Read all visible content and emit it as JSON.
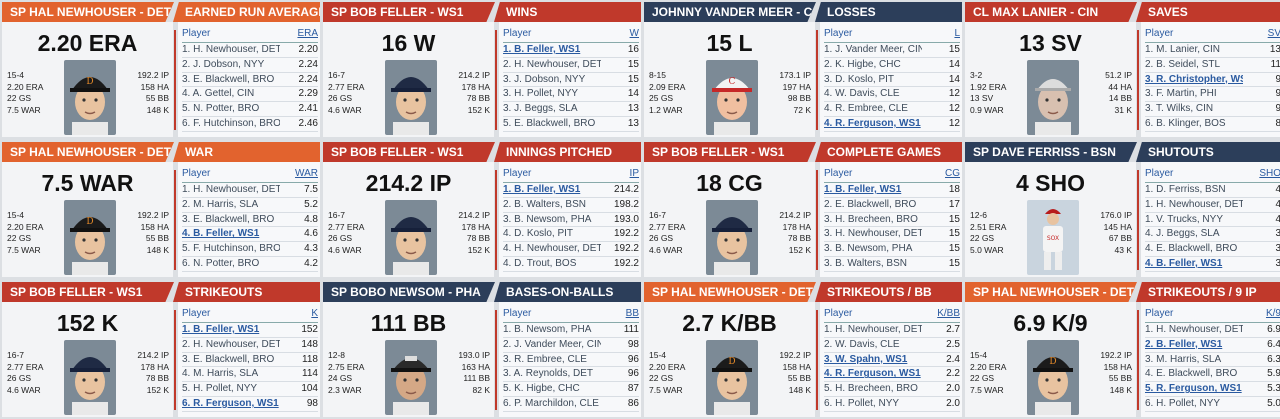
{
  "colors": {
    "orange": "#e2632e",
    "red": "#c0392b",
    "navy": "#2c3e5a"
  },
  "cards": [
    {
      "header_left": "SP HAL NEWHOUSER - DET",
      "header_right": "EARNED RUN AVERAGE",
      "left_color": "orange",
      "right_color": "orange",
      "big": "2.20 ERA",
      "photo": "tigers-cap",
      "left_stats": [
        "15-4",
        "2.20 ERA",
        "22 GS",
        "7.5 WAR"
      ],
      "right_stats": [
        "192.2 IP",
        "158 HA",
        "55 BB",
        "148 K"
      ],
      "col_player": "Player",
      "col_stat": "ERA",
      "rows": [
        {
          "player": "1. H. Newhouser, DET",
          "value": "2.20",
          "hl": false
        },
        {
          "player": "2. J. Dobson, NYY",
          "value": "2.24",
          "hl": false
        },
        {
          "player": "3. E. Blackwell, BRO",
          "value": "2.24",
          "hl": false
        },
        {
          "player": "4. A. Gettel, CIN",
          "value": "2.29",
          "hl": false
        },
        {
          "player": "5. N. Potter, BRO",
          "value": "2.41",
          "hl": false
        },
        {
          "player": "6. F. Hutchinson, BRO",
          "value": "2.46",
          "hl": false
        }
      ]
    },
    {
      "header_left": "SP BOB FELLER - WS1",
      "header_right": "WINS",
      "left_color": "red",
      "right_color": "red",
      "big": "16 W",
      "photo": "young-player",
      "left_stats": [
        "16-7",
        "2.77 ERA",
        "26 GS",
        "4.6 WAR"
      ],
      "right_stats": [
        "214.2 IP",
        "178 HA",
        "78 BB",
        "152 K"
      ],
      "col_player": "Player",
      "col_stat": "W",
      "rows": [
        {
          "player": "1. B. Feller, WS1",
          "value": "16",
          "hl": true
        },
        {
          "player": "2. H. Newhouser, DET",
          "value": "15",
          "hl": false
        },
        {
          "player": "3. J. Dobson, NYY",
          "value": "15",
          "hl": false
        },
        {
          "player": "3. H. Pollet, NYY",
          "value": "14",
          "hl": false
        },
        {
          "player": "3. J. Beggs, SLA",
          "value": "13",
          "hl": false
        },
        {
          "player": "5. E. Blackwell, BRO",
          "value": "13",
          "hl": false
        }
      ]
    },
    {
      "header_left": "JOHNNY VANDER MEER - C",
      "header_right": "LOSSES",
      "left_color": "navy",
      "right_color": "navy",
      "big": "15 L",
      "photo": "reds-cap",
      "left_stats": [
        "8-15",
        "2.09 ERA",
        "25 GS",
        "1.2 WAR"
      ],
      "right_stats": [
        "173.1 IP",
        "197 HA",
        "98 BB",
        "72 K"
      ],
      "col_player": "Player",
      "col_stat": "L",
      "rows": [
        {
          "player": "1. J. Vander Meer, CIN",
          "value": "15",
          "hl": false
        },
        {
          "player": "2. K. Higbe, CHC",
          "value": "14",
          "hl": false
        },
        {
          "player": "3. D. Koslo, PIT",
          "value": "14",
          "hl": false
        },
        {
          "player": "4. W. Davis, CLE",
          "value": "12",
          "hl": false
        },
        {
          "player": "4. R. Embree, CLE",
          "value": "12",
          "hl": false
        },
        {
          "player": "4. R. Ferguson, WS1",
          "value": "12",
          "hl": true
        }
      ]
    },
    {
      "header_left": "CL MAX LANIER - CIN",
      "header_right": "SAVES",
      "left_color": "red",
      "right_color": "red",
      "big": "13 SV",
      "photo": "older-player",
      "left_stats": [
        "3-2",
        "1.92 ERA",
        "13 SV",
        "0.9 WAR"
      ],
      "right_stats": [
        "51.2 IP",
        "44 HA",
        "14 BB",
        "31 K"
      ],
      "col_player": "Player",
      "col_stat": "SV",
      "rows": [
        {
          "player": "1. M. Lanier, CIN",
          "value": "13",
          "hl": false
        },
        {
          "player": "2. B. Seidel, STL",
          "value": "11",
          "hl": false
        },
        {
          "player": "3. R. Christopher, WS1",
          "value": "9",
          "hl": true
        },
        {
          "player": "3. F. Martin, PHI",
          "value": "9",
          "hl": false
        },
        {
          "player": "3. T. Wilks, CIN",
          "value": "9",
          "hl": false
        },
        {
          "player": "6. B. Klinger, BOS",
          "value": "8",
          "hl": false
        }
      ]
    },
    {
      "header_left": "SP HAL NEWHOUSER - DET",
      "header_right": "WAR",
      "left_color": "orange",
      "right_color": "orange",
      "big": "7.5 WAR",
      "photo": "tigers-cap",
      "left_stats": [
        "15-4",
        "2.20 ERA",
        "22 GS",
        "7.5 WAR"
      ],
      "right_stats": [
        "192.2 IP",
        "158 HA",
        "55 BB",
        "148 K"
      ],
      "col_player": "Player",
      "col_stat": "WAR",
      "rows": [
        {
          "player": "1. H. Newhouser, DET",
          "value": "7.5",
          "hl": false
        },
        {
          "player": "2. M. Harris, SLA",
          "value": "5.2",
          "hl": false
        },
        {
          "player": "3. E. Blackwell, BRO",
          "value": "4.8",
          "hl": false
        },
        {
          "player": "4. B. Feller, WS1",
          "value": "4.6",
          "hl": true
        },
        {
          "player": "5. F. Hutchinson, BRO",
          "value": "4.3",
          "hl": false
        },
        {
          "player": "6. N. Potter, BRO",
          "value": "4.2",
          "hl": false
        }
      ]
    },
    {
      "header_left": "SP BOB FELLER - WS1",
      "header_right": "INNINGS PITCHED",
      "left_color": "red",
      "right_color": "red",
      "big": "214.2 IP",
      "photo": "young-player",
      "left_stats": [
        "16-7",
        "2.77 ERA",
        "26 GS",
        "4.6 WAR"
      ],
      "right_stats": [
        "214.2 IP",
        "178 HA",
        "78 BB",
        "152 K"
      ],
      "col_player": "Player",
      "col_stat": "IP",
      "rows": [
        {
          "player": "1. B. Feller, WS1",
          "value": "214.2",
          "hl": true
        },
        {
          "player": "2. B. Walters, BSN",
          "value": "198.2",
          "hl": false
        },
        {
          "player": "3. B. Newsom, PHA",
          "value": "193.0",
          "hl": false
        },
        {
          "player": "4. D. Koslo, PIT",
          "value": "192.2",
          "hl": false
        },
        {
          "player": "4. H. Newhouser, DET",
          "value": "192.2",
          "hl": false
        },
        {
          "player": "4. D. Trout, BOS",
          "value": "192.2",
          "hl": false
        }
      ]
    },
    {
      "header_left": "SP BOB FELLER - WS1",
      "header_right": "COMPLETE GAMES",
      "left_color": "red",
      "right_color": "red",
      "big": "18 CG",
      "photo": "young-player",
      "left_stats": [
        "16-7",
        "2.77 ERA",
        "26 GS",
        "4.6 WAR"
      ],
      "right_stats": [
        "214.2 IP",
        "178 HA",
        "78 BB",
        "152 K"
      ],
      "col_player": "Player",
      "col_stat": "CG",
      "rows": [
        {
          "player": "1. B. Feller, WS1",
          "value": "18",
          "hl": true
        },
        {
          "player": "2. E. Blackwell, BRO",
          "value": "17",
          "hl": false
        },
        {
          "player": "3. H. Brecheen, BRO",
          "value": "15",
          "hl": false
        },
        {
          "player": "3. H. Newhouser, DET",
          "value": "15",
          "hl": false
        },
        {
          "player": "3. B. Newsom, PHA",
          "value": "15",
          "hl": false
        },
        {
          "player": "3. B. Walters, BSN",
          "value": "15",
          "hl": false
        }
      ]
    },
    {
      "header_left": "SP DAVE FERRISS - BSN",
      "header_right": "SHUTOUTS",
      "left_color": "navy",
      "right_color": "navy",
      "big": "4 SHO",
      "photo": "full-body",
      "left_stats": [
        "12-6",
        "2.51 ERA",
        "22 GS",
        "5.0 WAR"
      ],
      "right_stats": [
        "176.0 IP",
        "145 HA",
        "67 BB",
        "43 K"
      ],
      "col_player": "Player",
      "col_stat": "SHO",
      "rows": [
        {
          "player": "1. D. Ferriss, BSN",
          "value": "4",
          "hl": false
        },
        {
          "player": "1. H. Newhouser, DET",
          "value": "4",
          "hl": false
        },
        {
          "player": "1. V. Trucks, NYY",
          "value": "4",
          "hl": false
        },
        {
          "player": "4. J. Beggs, SLA",
          "value": "3",
          "hl": false
        },
        {
          "player": "4. E. Blackwell, BRO",
          "value": "3",
          "hl": false
        },
        {
          "player": "4. B. Feller, WS1",
          "value": "3",
          "hl": true
        }
      ]
    },
    {
      "header_left": "SP BOB FELLER - WS1",
      "header_right": "STRIKEOUTS",
      "left_color": "red",
      "right_color": "red",
      "big": "152 K",
      "photo": "young-player",
      "left_stats": [
        "16-7",
        "2.77 ERA",
        "26 GS",
        "4.6 WAR"
      ],
      "right_stats": [
        "214.2 IP",
        "178 HA",
        "78 BB",
        "152 K"
      ],
      "col_player": "Player",
      "col_stat": "K",
      "rows": [
        {
          "player": "1. B. Feller, WS1",
          "value": "152",
          "hl": true
        },
        {
          "player": "2. H. Newhouser, DET",
          "value": "148",
          "hl": false
        },
        {
          "player": "3. E. Blackwell, BRO",
          "value": "118",
          "hl": false
        },
        {
          "player": "4. M. Harris, SLA",
          "value": "114",
          "hl": false
        },
        {
          "player": "5. H. Pollet, NYY",
          "value": "104",
          "hl": false
        },
        {
          "player": "6. R. Ferguson, WS1",
          "value": "98",
          "hl": true
        }
      ]
    },
    {
      "header_left": "SP BOBO NEWSOM - PHA",
      "header_right": "BASES-ON-BALLS",
      "left_color": "navy",
      "right_color": "navy",
      "big": "111 BB",
      "photo": "dark-cap",
      "left_stats": [
        "12-8",
        "2.75 ERA",
        "24 GS",
        "2.3 WAR"
      ],
      "right_stats": [
        "193.0 IP",
        "163 HA",
        "111 BB",
        "82 K"
      ],
      "col_player": "Player",
      "col_stat": "BB",
      "rows": [
        {
          "player": "1. B. Newsom, PHA",
          "value": "111",
          "hl": false
        },
        {
          "player": "2. J. Vander Meer, CIN",
          "value": "98",
          "hl": false
        },
        {
          "player": "3. R. Embree, CLE",
          "value": "96",
          "hl": false
        },
        {
          "player": "3. A. Reynolds, DET",
          "value": "96",
          "hl": false
        },
        {
          "player": "5. K. Higbe, CHC",
          "value": "87",
          "hl": false
        },
        {
          "player": "6. P. Marchildon, CLE",
          "value": "86",
          "hl": false
        }
      ]
    },
    {
      "header_left": "SP HAL NEWHOUSER - DET",
      "header_right": "STRIKEOUTS / BB",
      "left_color": "orange",
      "right_color": "red",
      "big": "2.7 K/BB",
      "photo": "tigers-cap",
      "left_stats": [
        "15-4",
        "2.20 ERA",
        "22 GS",
        "7.5 WAR"
      ],
      "right_stats": [
        "192.2 IP",
        "158 HA",
        "55 BB",
        "148 K"
      ],
      "col_player": "Player",
      "col_stat": "K/BB",
      "rows": [
        {
          "player": "1. H. Newhouser, DET",
          "value": "2.7",
          "hl": false
        },
        {
          "player": "2. W. Davis, CLE",
          "value": "2.5",
          "hl": false
        },
        {
          "player": "3. W. Spahn, WS1",
          "value": "2.4",
          "hl": true
        },
        {
          "player": "4. R. Ferguson, WS1",
          "value": "2.2",
          "hl": true
        },
        {
          "player": "5. H. Brecheen, BRO",
          "value": "2.0",
          "hl": false
        },
        {
          "player": "6. H. Pollet, NYY",
          "value": "2.0",
          "hl": false
        }
      ]
    },
    {
      "header_left": "SP HAL NEWHOUSER - DET",
      "header_right": "STRIKEOUTS / 9 IP",
      "left_color": "orange",
      "right_color": "red",
      "big": "6.9 K/9",
      "photo": "tigers-cap",
      "left_stats": [
        "15-4",
        "2.20 ERA",
        "22 GS",
        "7.5 WAR"
      ],
      "right_stats": [
        "192.2 IP",
        "158 HA",
        "55 BB",
        "148 K"
      ],
      "col_player": "Player",
      "col_stat": "K/9",
      "rows": [
        {
          "player": "1. H. Newhouser, DET",
          "value": "6.9",
          "hl": false
        },
        {
          "player": "2. B. Feller, WS1",
          "value": "6.4",
          "hl": true
        },
        {
          "player": "3. M. Harris, SLA",
          "value": "6.3",
          "hl": false
        },
        {
          "player": "4. E. Blackwell, BRO",
          "value": "5.9",
          "hl": false
        },
        {
          "player": "5. R. Ferguson, WS1",
          "value": "5.3",
          "hl": true
        },
        {
          "player": "6. H. Pollet, NYY",
          "value": "5.0",
          "hl": false
        }
      ]
    }
  ]
}
